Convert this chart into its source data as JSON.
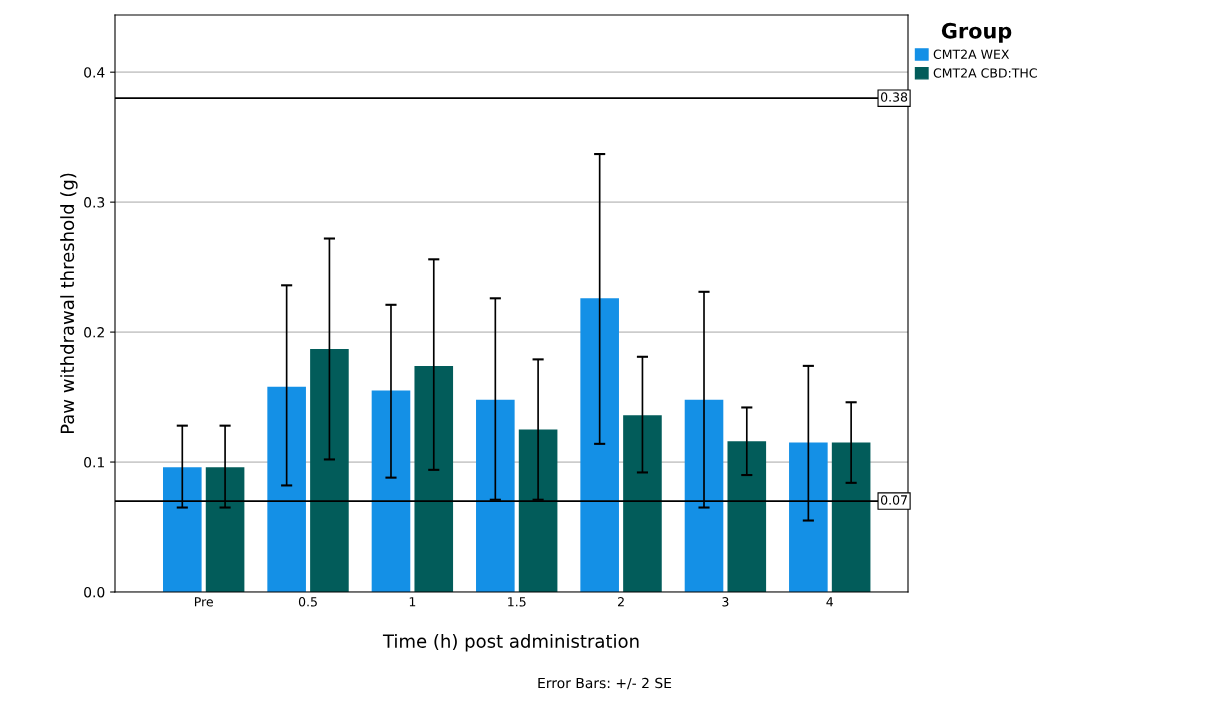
{
  "chart_data": {
    "type": "bar",
    "xlabel": "Time (h) post administration",
    "ylabel": "Paw withdrawal threshold (g)",
    "legend_title": "Group",
    "categories": [
      "Pre",
      "0.5",
      "1",
      "1.5",
      "2",
      "3",
      "4"
    ],
    "series": [
      {
        "name": "CMT2A WEX",
        "color": "#1490e6",
        "values": [
          0.096,
          0.158,
          0.155,
          0.148,
          0.226,
          0.148,
          0.115
        ],
        "errors": [
          [
            0.065,
            0.128
          ],
          [
            0.082,
            0.236
          ],
          [
            0.088,
            0.221
          ],
          [
            0.071,
            0.226
          ],
          [
            0.114,
            0.337
          ],
          [
            0.065,
            0.231
          ],
          [
            0.055,
            0.174
          ]
        ]
      },
      {
        "name": "CMT2A CBD:THC",
        "color": "#025c5a",
        "values": [
          0.096,
          0.187,
          0.174,
          0.125,
          0.136,
          0.116,
          0.115
        ],
        "errors": [
          [
            0.065,
            0.128
          ],
          [
            0.102,
            0.272
          ],
          [
            0.094,
            0.256
          ],
          [
            0.071,
            0.179
          ],
          [
            0.092,
            0.181
          ],
          [
            0.09,
            0.142
          ],
          [
            0.084,
            0.146
          ]
        ]
      }
    ],
    "ylim": [
      0,
      0.444
    ],
    "yticks": [
      {
        "value": 0,
        "label": "0.0"
      },
      0.1,
      0.2,
      0.3,
      0.4
    ],
    "grid": "y",
    "legend": "top right",
    "ref_lines": [
      {
        "axis": "y",
        "value": 0.38,
        "label": "0.38",
        "color": "#000000"
      },
      {
        "axis": "y",
        "value": 0.07,
        "label": "0.07",
        "color": "#000000"
      }
    ],
    "annotations": [
      "Error Bars: +/- 2 SE"
    ]
  }
}
